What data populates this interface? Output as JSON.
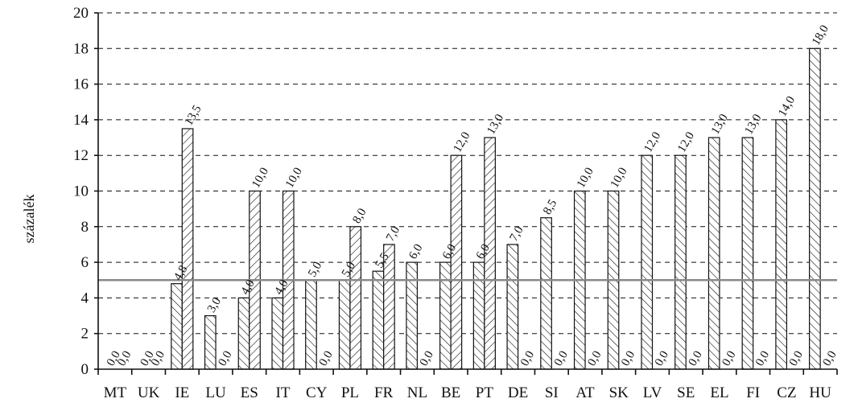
{
  "chart_data": {
    "type": "bar",
    "ylabel": "százalék",
    "ylim": [
      0,
      20
    ],
    "yticks": [
      0,
      2,
      4,
      6,
      8,
      10,
      12,
      14,
      16,
      18,
      20
    ],
    "grid": true,
    "reference_line": 5,
    "categories": [
      "MT",
      "UK",
      "IE",
      "LU",
      "ES",
      "IT",
      "CY",
      "PL",
      "FR",
      "NL",
      "BE",
      "PT",
      "DE",
      "SI",
      "AT",
      "SK",
      "LV",
      "SE",
      "EL",
      "FI",
      "CZ",
      "HU"
    ],
    "series": [
      {
        "hatch": "backslash",
        "values": [
          0,
          0,
          4.8,
          3,
          4,
          4,
          5,
          5,
          5.5,
          6,
          6,
          6,
          7,
          8.5,
          10,
          10,
          12,
          12,
          13,
          13,
          14,
          18
        ],
        "labels": [
          "0,0",
          "0,0",
          "4,8",
          "3,0",
          "4,0",
          "4,0",
          "5,0",
          "5,0",
          "5,5",
          "6,0",
          "6,0",
          "6,0",
          "7,0",
          "8,5",
          "10,0",
          "10,0",
          "12,0",
          "12,0",
          "13,0",
          "13,0",
          "14,0",
          "18,0"
        ]
      },
      {
        "hatch": "slash",
        "values": [
          0,
          0,
          13.5,
          0,
          10,
          10,
          0,
          8,
          7,
          0,
          12,
          13,
          0,
          0,
          0,
          0,
          0,
          0,
          0,
          0,
          0,
          0
        ],
        "labels": [
          "0,0",
          "0,0",
          "13,5",
          "0,0",
          "10,0",
          "10,0",
          "0,0",
          "8,0",
          "7,0",
          "0,0",
          "12,0",
          "13,0",
          "0,0",
          "0,0",
          "0,0",
          "0,0",
          "0,0",
          "0,0",
          "0,0",
          "0,0",
          "0,0",
          "0,0"
        ]
      }
    ]
  }
}
